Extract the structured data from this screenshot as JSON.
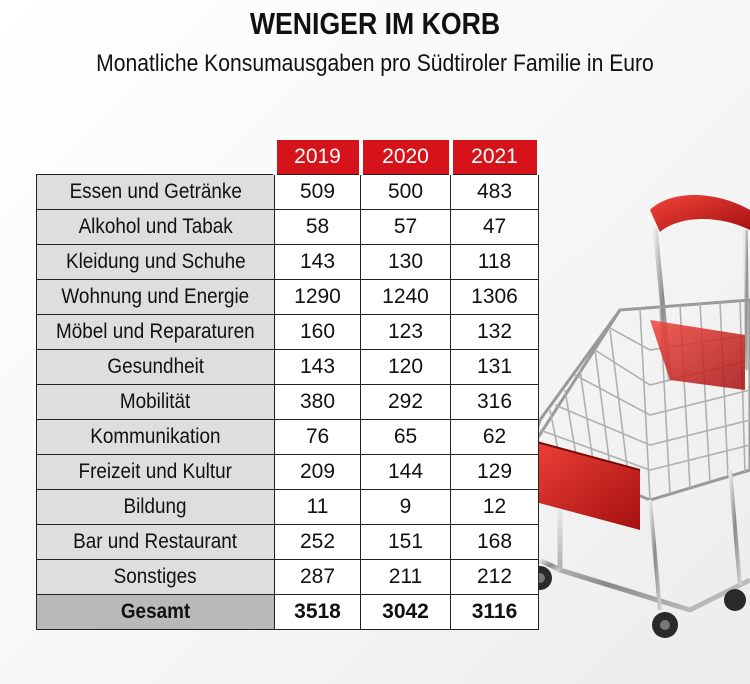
{
  "header": {
    "title": "WENIGER IM KORB",
    "subtitle": "Monatliche Konsumausgaben pro Südtiroler Familie in Euro"
  },
  "colors": {
    "accent_red": "#d6131a",
    "label_bg": "#dedede",
    "total_bg": "#b9b9b9"
  },
  "chart_data": {
    "type": "table",
    "title": "WENIGER IM KORB",
    "subtitle": "Monatliche Konsumausgaben pro Südtiroler Familie in Euro",
    "columns": [
      "2019",
      "2020",
      "2021"
    ],
    "rows": [
      {
        "label": "Essen und Getränke",
        "values": [
          "509",
          "500",
          "483"
        ]
      },
      {
        "label": "Alkohol und Tabak",
        "values": [
          "58",
          "57",
          "47"
        ]
      },
      {
        "label": "Kleidung und Schuhe",
        "values": [
          "143",
          "130",
          "118"
        ]
      },
      {
        "label": "Wohnung und Energie",
        "values": [
          "1290",
          "1240",
          "1306"
        ]
      },
      {
        "label": "Möbel und Reparaturen",
        "values": [
          "160",
          "123",
          "132"
        ]
      },
      {
        "label": "Gesundheit",
        "values": [
          "143",
          "120",
          "131"
        ]
      },
      {
        "label": "Mobilität",
        "values": [
          "380",
          "292",
          "316"
        ]
      },
      {
        "label": "Kommunikation",
        "values": [
          "76",
          "65",
          "62"
        ]
      },
      {
        "label": "Freizeit und Kultur",
        "values": [
          "209",
          "144",
          "129"
        ]
      },
      {
        "label": "Bildung",
        "values": [
          "11",
          "9",
          "12"
        ]
      },
      {
        "label": "Bar und Restaurant",
        "values": [
          "252",
          "151",
          "168"
        ]
      },
      {
        "label": "Sonstiges",
        "values": [
          "287",
          "211",
          "212"
        ]
      }
    ],
    "total": {
      "label": "Gesamt",
      "values": [
        "3518",
        "3042",
        "3116"
      ]
    }
  }
}
